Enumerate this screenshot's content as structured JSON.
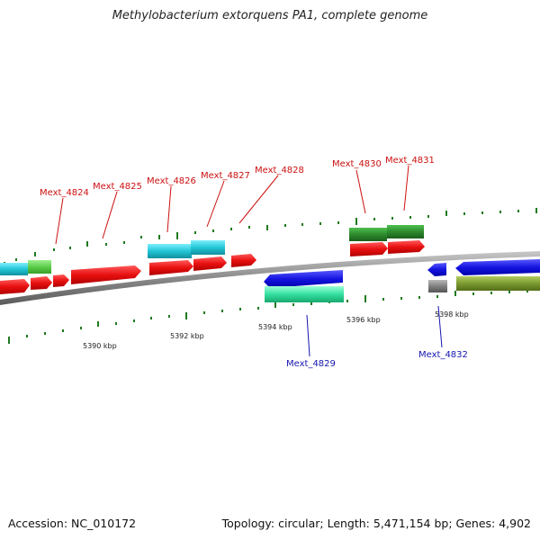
{
  "title": "Methylobacterium extorquens PA1, complete genome",
  "footer": {
    "accession": "Accession: NC_010172",
    "summary": "Topology: circular; Length: 5,471,154 bp; Genes: 4,902"
  },
  "colors": {
    "forward_gene": "#e41414",
    "reverse_gene": "#1f1fe0",
    "backbone": "#8a8a8a",
    "tick": "#1f7a1f",
    "label_forward": "#cc1010",
    "label_reverse": "#1515b0",
    "cyan_feature": "#22c6d6",
    "green_feature": "#2e8b2e",
    "lightgreen_feature": "#5ccc4a",
    "seagreen_feature": "#33e0a0",
    "olive_feature": "#7a9a30",
    "gray_feature": "#808080"
  },
  "axis_labels": [
    "5390 kbp",
    "5392 kbp",
    "5394 kbp",
    "5396 kbp",
    "5398 kbp"
  ],
  "gene_labels_forward": [
    "Mext_4824",
    "Mext_4825",
    "Mext_4826",
    "Mext_4827",
    "Mext_4828",
    "Mext_4830",
    "Mext_4831"
  ],
  "gene_labels_reverse": [
    "Mext_4829",
    "Mext_4832"
  ]
}
